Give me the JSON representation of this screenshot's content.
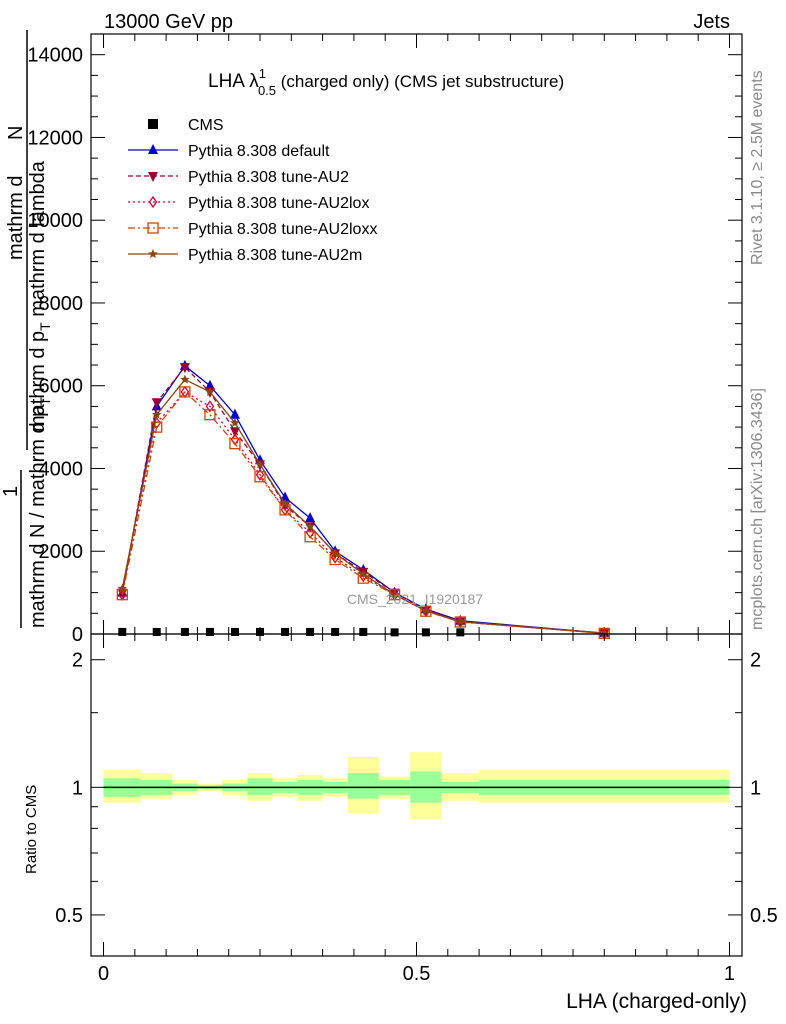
{
  "header": {
    "left": "13000 GeV pp",
    "right": "Jets"
  },
  "side": {
    "rivet": "Rivet 3.1.10, ≥ 2.5M events",
    "mcplots": "mcplots.cern.ch [arXiv:1306.3436]"
  },
  "plot_title": {
    "main": "LHA λ",
    "sup": "1",
    "sub": "0.5",
    "rest": " (charged only) (CMS jet substructure)"
  },
  "watermark": "CMS_2021_I1920187",
  "ylabel": {
    "num1": "mathrm d",
    "num2": "N",
    "den": "mathrm d p",
    "den_sub": "T",
    "den_rest": " mathrm d lambda",
    "one": "1",
    "frac": "mathrm d N / mathrm d p",
    "frac_sub": "T"
  },
  "ratio_ylabel": "Ratio to CMS",
  "chart_data": {
    "type": "line",
    "xlabel": "LHA (charged-only)",
    "xlim": [
      0,
      1
    ],
    "ylim": [
      0,
      14500
    ],
    "x_ticks": [
      0,
      0.5,
      1
    ],
    "x_tick_labels": [
      "0",
      "0.5",
      "1"
    ],
    "y_ticks": [
      0,
      2000,
      4000,
      6000,
      8000,
      10000,
      12000,
      14000
    ],
    "y_tick_labels": [
      "0",
      "2000",
      "4000",
      "6000",
      "8000",
      "10000",
      "12000",
      "14000"
    ],
    "x": [
      0.03,
      0.085,
      0.13,
      0.17,
      0.21,
      0.25,
      0.29,
      0.33,
      0.37,
      0.415,
      0.465,
      0.515,
      0.57,
      0.8
    ],
    "series": [
      {
        "name": "CMS",
        "color": "#000000",
        "marker": "square",
        "dash": "none",
        "values": [
          50,
          50,
          50,
          50,
          50,
          50,
          50,
          50,
          50,
          50,
          40,
          40,
          40,
          null
        ]
      },
      {
        "name": "Pythia 8.308 default",
        "color": "#0000cc",
        "marker": "triangle-up",
        "dash": "solid",
        "values": [
          1000,
          5500,
          6480,
          6000,
          5300,
          4200,
          3300,
          2800,
          2000,
          1550,
          1000,
          600,
          320,
          20
        ]
      },
      {
        "name": "Pythia 8.308 tune-AU2",
        "color": "#990033",
        "marker": "triangle-down",
        "dash": "dashed",
        "values": [
          1000,
          5600,
          6450,
          5850,
          4900,
          4100,
          3100,
          2600,
          1950,
          1500,
          1000,
          580,
          300,
          20
        ]
      },
      {
        "name": "Pythia 8.308 tune-AU2lox",
        "color": "#cc0033",
        "marker": "diamond-open",
        "dash": "dotted",
        "values": [
          950,
          5100,
          5850,
          5500,
          4700,
          3850,
          3000,
          2450,
          1850,
          1400,
          950,
          560,
          290,
          15
        ]
      },
      {
        "name": "Pythia 8.308 tune-AU2loxx",
        "color": "#cc4400",
        "marker": "square-open",
        "dash": "dashdot",
        "values": [
          950,
          5000,
          5850,
          5300,
          4600,
          3800,
          3000,
          2350,
          1800,
          1350,
          950,
          550,
          290,
          15
        ]
      },
      {
        "name": "Pythia 8.308 tune-AU2m",
        "color": "#8b4513",
        "marker": "star",
        "dash": "solid",
        "values": [
          1100,
          5300,
          6150,
          5850,
          5100,
          4100,
          3150,
          2600,
          1950,
          1450,
          950,
          560,
          300,
          20
        ]
      }
    ],
    "ratio": {
      "ylim": [
        0.4,
        2.3
      ],
      "log_scale": true,
      "y_ticks": [
        0.5,
        1,
        2
      ],
      "y_tick_labels": [
        "0.5",
        "1",
        "2"
      ],
      "bin_edges": [
        0,
        0.06,
        0.11,
        0.15,
        0.19,
        0.23,
        0.27,
        0.31,
        0.35,
        0.39,
        0.44,
        0.49,
        0.54,
        0.6,
        1.0
      ],
      "band_inner": [
        [
          0.95,
          1.05
        ],
        [
          0.96,
          1.04
        ],
        [
          0.98,
          1.02
        ],
        [
          0.99,
          1.01
        ],
        [
          0.98,
          1.02
        ],
        [
          0.96,
          1.05
        ],
        [
          0.97,
          1.03
        ],
        [
          0.96,
          1.04
        ],
        [
          0.97,
          1.03
        ],
        [
          0.94,
          1.08
        ],
        [
          0.96,
          1.04
        ],
        [
          0.92,
          1.09
        ],
        [
          0.97,
          1.03
        ],
        [
          0.96,
          1.04
        ]
      ],
      "band_outer": [
        [
          0.92,
          1.1
        ],
        [
          0.94,
          1.08
        ],
        [
          0.96,
          1.04
        ],
        [
          0.98,
          1.02
        ],
        [
          0.96,
          1.04
        ],
        [
          0.93,
          1.08
        ],
        [
          0.95,
          1.05
        ],
        [
          0.93,
          1.07
        ],
        [
          0.95,
          1.05
        ],
        [
          0.87,
          1.18
        ],
        [
          0.94,
          1.06
        ],
        [
          0.84,
          1.21
        ],
        [
          0.93,
          1.08
        ],
        [
          0.92,
          1.1
        ]
      ],
      "inner_color": "#99ff99",
      "outer_color": "#ffff99"
    }
  }
}
